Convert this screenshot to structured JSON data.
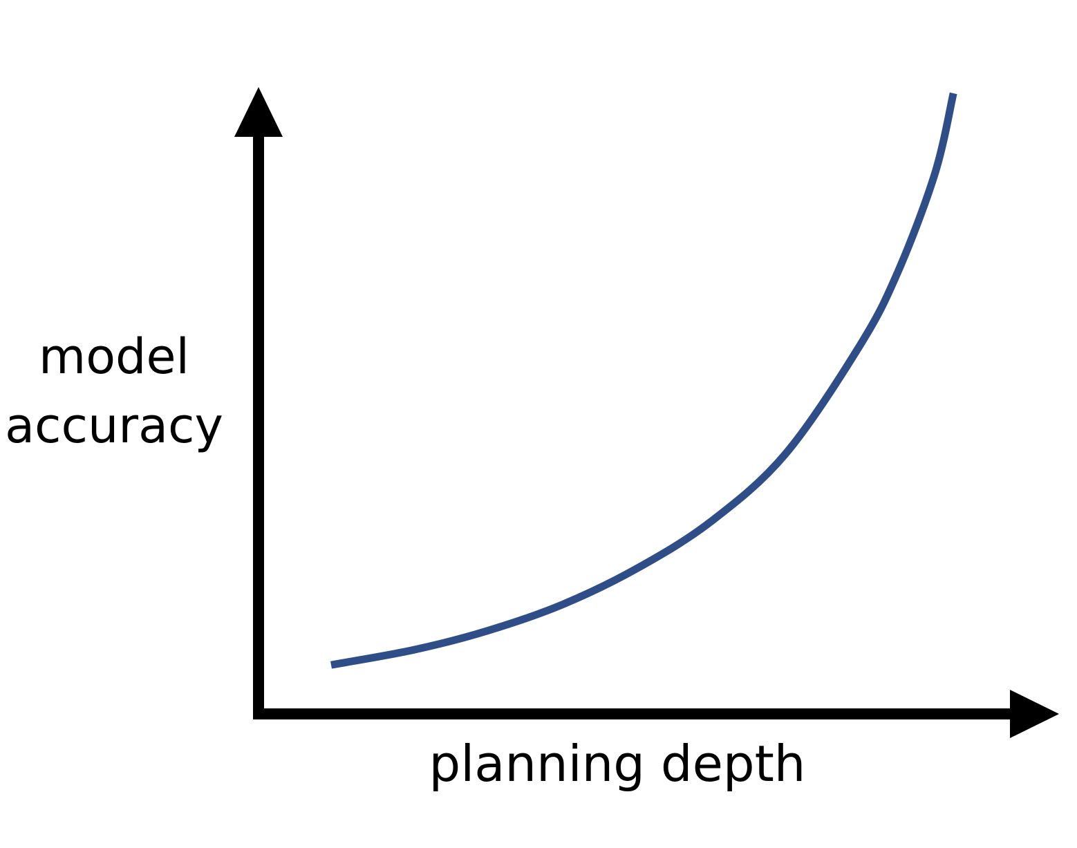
{
  "chart_data": {
    "type": "line",
    "title": "",
    "xlabel": "planning depth",
    "ylabel": [
      "model",
      "accuracy"
    ],
    "grid": false,
    "legend": "none",
    "axis_ticks": false,
    "x_range": [
      0,
      1
    ],
    "y_range": [
      0,
      1
    ],
    "series": [
      {
        "color": "#2F4D86",
        "points": [
          [
            0.09,
            0.07
          ],
          [
            0.2,
            0.094
          ],
          [
            0.3,
            0.125
          ],
          [
            0.4,
            0.167
          ],
          [
            0.5,
            0.225
          ],
          [
            0.6,
            0.301
          ],
          [
            0.7,
            0.41
          ],
          [
            0.8,
            0.585
          ],
          [
            0.85,
            0.701
          ],
          [
            0.9,
            0.86
          ],
          [
            0.925,
            0.99
          ]
        ]
      }
    ]
  }
}
